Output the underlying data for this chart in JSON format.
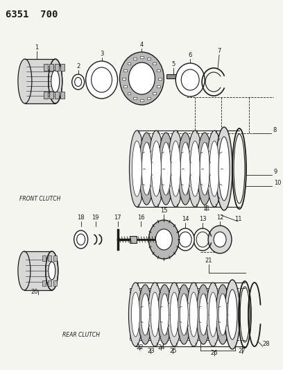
{
  "title": "6351  700",
  "bg_color": "#f5f5f0",
  "line_color": "#1a1a1a",
  "front_clutch_label": "FRONT CLUTCH",
  "rear_clutch_label": "REAR CLUTCH",
  "gray_light": "#d8d8d8",
  "gray_mid": "#b8b8b8",
  "gray_dark": "#909090",
  "white": "#ffffff",
  "black": "#111111"
}
